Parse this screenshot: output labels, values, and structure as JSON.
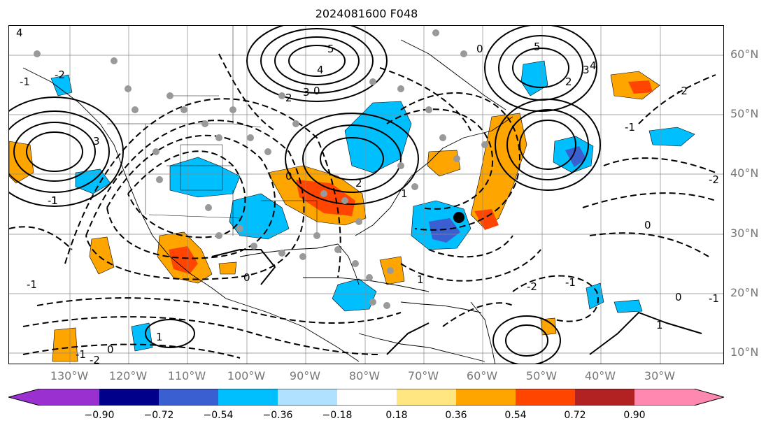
{
  "title": "2024081600 F048",
  "lat_labels": [
    "60°N",
    "50°N",
    "40°N",
    "30°N",
    "20°N",
    "10°N"
  ],
  "lon_labels": [
    "130°W",
    "120°W",
    "110°W",
    "100°W",
    "90°W",
    "80°W",
    "70°W",
    "60°W",
    "50°W",
    "40°W",
    "30°W"
  ],
  "colorbar": {
    "ticks": [
      "−0.90",
      "−0.72",
      "−0.54",
      "−0.36",
      "−0.18",
      "0.18",
      "0.36",
      "0.54",
      "0.72",
      "0.90"
    ],
    "colors": [
      "#9b30d0",
      "#00008b",
      "#3a5fd0",
      "#00bfff",
      "#b0e2ff",
      "#ffffff",
      "#ffe680",
      "#ffa500",
      "#ff4500",
      "#b22222",
      "#ff88b0"
    ]
  },
  "contour_labels": [
    "4",
    "5",
    "4",
    "3",
    "2",
    "0",
    "-1",
    "-2",
    "5",
    "3",
    "4",
    "2",
    "0",
    "-1",
    "-2",
    "3",
    "1",
    "-1",
    "0",
    "2",
    "-2",
    "0",
    "1",
    "-1",
    "0",
    "1",
    "-1",
    "0",
    "-2",
    "-1",
    "-1",
    "0",
    "1",
    "-2",
    "1"
  ]
}
